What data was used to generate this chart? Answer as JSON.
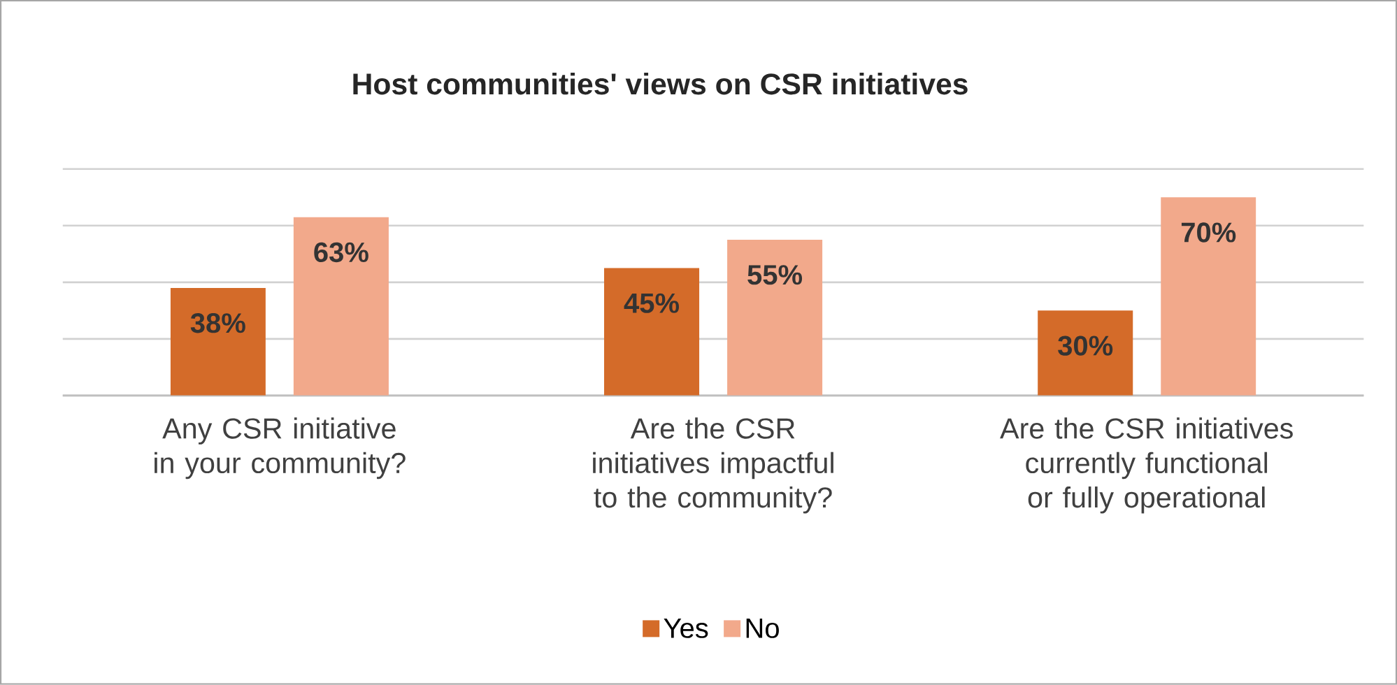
{
  "chart_data": {
    "type": "bar",
    "title": "Host communities' views on CSR initiatives",
    "categories": [
      "Any CSR initiative in your community?",
      "Are the CSR initiatives impactful to the community?",
      "Are the CSR initiatives currently functional or fully operational"
    ],
    "series": [
      {
        "name": "Yes",
        "color": "#d46b29",
        "values": [
          38,
          45,
          30
        ],
        "value_labels": [
          "38%",
          "45%",
          "30%"
        ]
      },
      {
        "name": "No",
        "color": "#f2a98b",
        "values": [
          63,
          55,
          70
        ],
        "value_labels": [
          "63%",
          "55%",
          "70%"
        ]
      }
    ],
    "ylim": [
      0,
      80
    ],
    "yticks": [
      {
        "value": 0,
        "label": null
      },
      {
        "value": 20,
        "label": null
      },
      {
        "value": 40,
        "label": null
      },
      {
        "value": 60,
        "label": null
      },
      {
        "value": 80,
        "label": null
      }
    ],
    "grid": "y",
    "tick_labels": "x",
    "legend": "bottom"
  }
}
